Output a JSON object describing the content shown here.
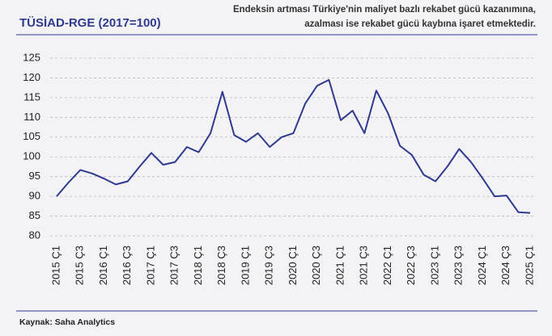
{
  "chart_data": {
    "type": "line",
    "title": "TÜSİAD-RGE (2017=100)",
    "subtitle": [
      "Endeksin artması Türkiye'nin maliyet bazlı rekabet gücü kazanımına,",
      "azalması ise rekabet gücü kaybına işaret etmektedir."
    ],
    "source": "Kaynak: Saha Analytics",
    "categories": [
      "2015 Ç1",
      null,
      "2015 Ç3",
      null,
      "2016 Ç1",
      null,
      "2016 Ç3",
      null,
      "2017 Ç1",
      null,
      "2017 Ç3",
      null,
      "2018 Ç1",
      null,
      "2018 Ç3",
      null,
      "2019 Ç1",
      null,
      "2019 Ç3",
      null,
      "2020 Ç1",
      null,
      "2020 Ç3",
      null,
      "2021 Ç1",
      null,
      "2021 Ç3",
      null,
      "2022 Ç1",
      null,
      "2022 Ç3",
      null,
      "2023 Ç1",
      null,
      "2023 Ç3",
      null,
      "2024 Ç1",
      null,
      "2024 Ç3",
      null,
      "2025 Ç1"
    ],
    "series": [
      {
        "color": "#2f3a8f",
        "values": [
          90,
          93.5,
          96.7,
          95.8,
          94.5,
          93,
          93.8,
          97.5,
          101,
          98,
          98.7,
          102.5,
          101.2,
          106,
          116.5,
          105.5,
          103.8,
          106,
          102.5,
          105,
          106,
          113.5,
          118,
          119.5,
          109.3,
          111.7,
          106,
          116.8,
          111,
          102.8,
          100.5,
          95.5,
          93.8,
          97.5,
          102,
          98.7,
          94.5,
          90,
          90.2,
          86,
          85.8
        ]
      }
    ],
    "ylim": [
      80,
      125
    ],
    "yticks": [
      80,
      85,
      90,
      95,
      100,
      105,
      110,
      115,
      120,
      125
    ],
    "grid": true
  }
}
